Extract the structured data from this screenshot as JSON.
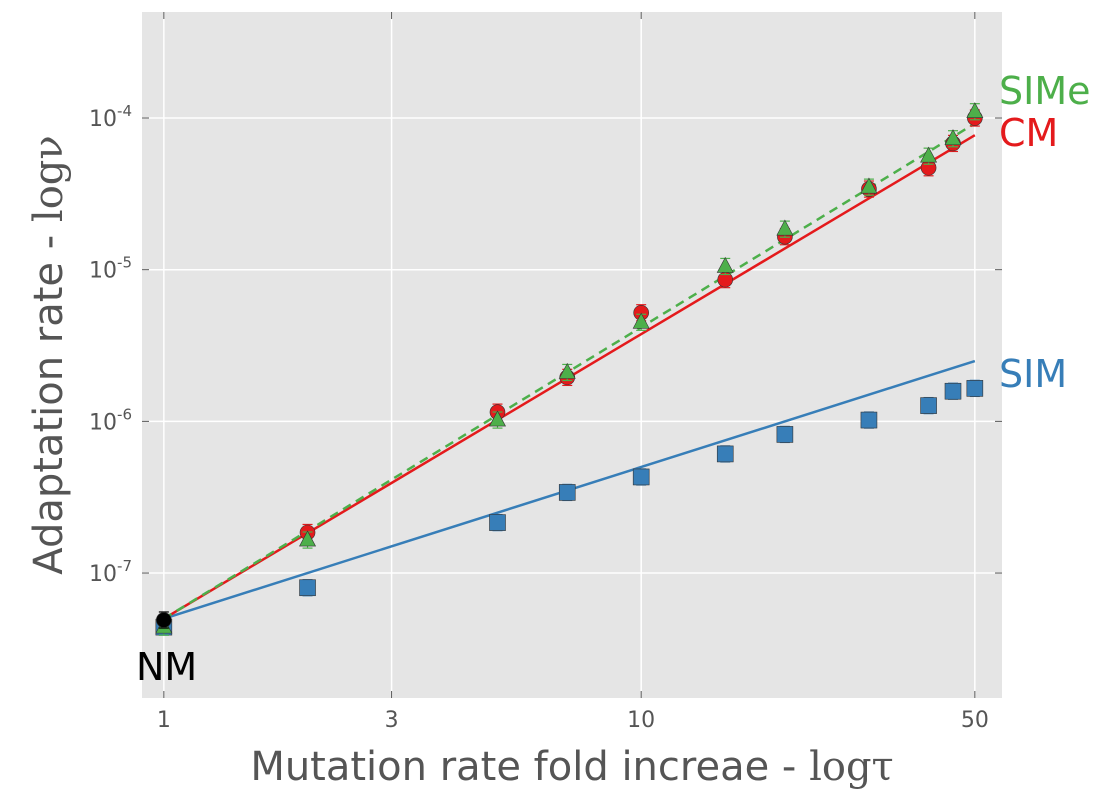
{
  "chart_data": {
    "type": "scatter",
    "xlabel": "Mutation rate fold increae - ",
    "xlabel_math": "logτ",
    "ylabel": "Adaptation rate - ",
    "ylabel_math": "logν",
    "xscale": "log",
    "yscale": "log",
    "xlim": [
      0.9,
      57
    ],
    "ylim": [
      1.5e-08,
      0.0005
    ],
    "grid": true,
    "x_ticks": [
      {
        "value": 1,
        "label": "1"
      },
      {
        "value": 3,
        "label": "3"
      },
      {
        "value": 10,
        "label": "10"
      },
      {
        "value": 50,
        "label": "50"
      }
    ],
    "y_ticks": [
      {
        "value": 1e-07,
        "base": "10",
        "exp": "-7"
      },
      {
        "value": 1e-06,
        "base": "10",
        "exp": "-6"
      },
      {
        "value": 1e-05,
        "base": "10",
        "exp": "-5"
      },
      {
        "value": 0.0001,
        "base": "10",
        "exp": "-4"
      }
    ],
    "series": [
      {
        "name": "SIM",
        "color": "#377eb8",
        "marker": "square",
        "x": [
          1,
          2,
          5,
          7,
          10,
          15,
          20,
          30,
          40,
          45,
          50
        ],
        "y": [
          4.4e-08,
          8e-08,
          2.15e-07,
          3.4e-07,
          4.3e-07,
          6.1e-07,
          8.2e-07,
          1.02e-06,
          1.27e-06,
          1.58e-06,
          1.65e-06
        ],
        "fit": {
          "x": [
            1,
            50
          ],
          "y": [
            5e-08,
            2.5e-06
          ],
          "style": "solid"
        }
      },
      {
        "name": "CM",
        "color": "#e41a1c",
        "marker": "circle",
        "x": [
          2,
          5,
          7,
          10,
          15,
          20,
          30,
          40,
          45,
          50
        ],
        "y": [
          1.85e-07,
          1.15e-06,
          1.95e-06,
          5.2e-06,
          8.6e-06,
          1.65e-05,
          3.4e-05,
          4.7e-05,
          6.8e-05,
          0.0001
        ],
        "fit": {
          "x": [
            1,
            50
          ],
          "y": [
            5e-08,
            7.7e-05
          ],
          "style": "solid"
        }
      },
      {
        "name": "SIMe",
        "color": "#4daf4a",
        "marker": "triangle",
        "x": [
          1,
          2,
          5,
          7,
          10,
          15,
          20,
          30,
          40,
          45,
          50
        ],
        "y": [
          4.4e-08,
          1.65e-07,
          1.02e-06,
          2.1e-06,
          4.5e-06,
          1.05e-05,
          1.85e-05,
          3.5e-05,
          5.6e-05,
          7.3e-05,
          0.00011
        ],
        "fit": {
          "x": [
            1,
            50
          ],
          "y": [
            5e-08,
            9.2e-05
          ],
          "style": "dashed"
        }
      },
      {
        "name": "NM",
        "color": "#000000",
        "marker": "circle",
        "x": [
          1
        ],
        "y": [
          4.9e-08
        ]
      }
    ],
    "annotations": [
      {
        "text": "SIMe",
        "color": "#4daf4a"
      },
      {
        "text": "CM",
        "color": "#e41a1c"
      },
      {
        "text": "SIM",
        "color": "#377eb8"
      },
      {
        "text": "NM",
        "color": "#000000"
      }
    ]
  }
}
